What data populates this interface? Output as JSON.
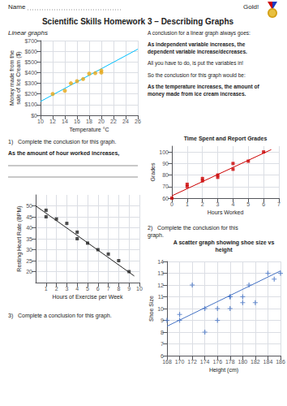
{
  "title": "Scientific Skills Homework 3 – Describing Graphs",
  "annotations": [
    "Name",
    "Gold!",
    "Linear graphs",
    "A conclusion for a linear graph always goes:",
    "As independent variable increases, the\ndependent variable increase/decreases.",
    "All you have to do, is put the variables in!",
    "So the conclusion for this graph would be:",
    "As the temperature increases, the amount of\nmoney made from ice cream increases.",
    "1)   Complete the conclusion for this graph.",
    "As the amount of hour worked increases,",
    "2)   Complete the conclusion for this graph.",
    "3)   Complete a conclusion for this graph."
  ],
  "chart_data": [
    {
      "type": "scatter",
      "xlabel": "Temperature °C",
      "ylabel": "Money made from the\nsale of Ice Cream ($)",
      "xlim": [
        10,
        26
      ],
      "ylim": [
        0,
        700
      ],
      "xticks": [
        10,
        12,
        14,
        16,
        18,
        20,
        22,
        24,
        26
      ],
      "yticks": [
        {
          "value": 0,
          "label": "$0"
        },
        {
          "value": 100,
          "label": "$100"
        },
        {
          "value": 200,
          "label": "$200"
        },
        {
          "value": 300,
          "label": "$300"
        },
        {
          "value": 400,
          "label": "$400"
        },
        {
          "value": 500,
          "label": "$500"
        },
        {
          "value": 600,
          "label": "$600"
        },
        {
          "value": 700,
          "label": "$700"
        }
      ],
      "grid": true,
      "series": [
        {
          "type": "scatter",
          "marker": "circle",
          "color": "#e6a817",
          "x": [
            12,
            14,
            15,
            16,
            17,
            18,
            19,
            20,
            20
          ],
          "values": [
            200,
            230,
            300,
            320,
            340,
            390,
            395,
            400,
            420
          ]
        },
        {
          "type": "line",
          "color": "#00bfff",
          "x": [
            10,
            26
          ],
          "values": [
            130,
            620
          ]
        }
      ]
    },
    {
      "type": "scatter",
      "title": "Time Spent and Report Grades",
      "xlabel": "Hours Worked",
      "ylabel": "Grades",
      "xlim": [
        0,
        7
      ],
      "ylim": [
        60,
        105
      ],
      "xticks": [
        0,
        1,
        2,
        3,
        4,
        5,
        6,
        7
      ],
      "yticks": [
        60,
        70,
        80,
        90,
        100
      ],
      "grid": true,
      "series": [
        {
          "type": "scatter",
          "marker": "square",
          "color": "#cc0000",
          "x": [
            0,
            1,
            1,
            2,
            2,
            3,
            3,
            4,
            4,
            5,
            6
          ],
          "values": [
            60,
            70,
            72,
            75,
            77,
            78,
            80,
            85,
            90,
            92,
            100
          ]
        },
        {
          "type": "line",
          "color": "#cc0000",
          "x": [
            0,
            6.5
          ],
          "values": [
            62,
            102
          ]
        }
      ]
    },
    {
      "type": "scatter",
      "xlabel": "Hours of Exercise per Week",
      "ylabel": "Resting Heart Rate (BPM)",
      "xlim": [
        0,
        10
      ],
      "ylim": [
        15,
        55
      ],
      "xticks": [
        1,
        2,
        3,
        4,
        5,
        6,
        7,
        8,
        9,
        10
      ],
      "yticks": [
        20,
        25,
        30,
        35,
        40,
        45,
        50
      ],
      "grid": true,
      "series": [
        {
          "type": "scatter",
          "marker": "square",
          "color": "#222222",
          "x": [
            1,
            1,
            2,
            3,
            4,
            4,
            5,
            6,
            7,
            8,
            9
          ],
          "values": [
            48,
            45,
            44,
            42,
            38,
            35,
            33,
            30,
            28,
            25,
            20
          ]
        },
        {
          "type": "line",
          "color": "#222222",
          "x": [
            0,
            9.5
          ],
          "values": [
            50,
            18
          ]
        }
      ]
    },
    {
      "type": "scatter",
      "title": "A scatter graph showing shoe size vs\nheight",
      "xlabel": "Height (cm)",
      "ylabel": "Shoe Size",
      "xlim": [
        168,
        186
      ],
      "ylim": [
        6,
        14
      ],
      "xticks": [
        168,
        170,
        172,
        174,
        176,
        178,
        180,
        182,
        184,
        186
      ],
      "yticks": [
        6,
        7,
        8,
        9,
        10,
        11,
        12,
        13,
        14
      ],
      "grid": true,
      "series": [
        {
          "type": "scatter",
          "marker": "plus",
          "color": "#4472c4",
          "x": [
            168,
            170,
            170,
            172,
            174,
            174,
            176,
            176,
            178,
            178,
            178,
            180,
            180,
            181,
            182,
            184,
            185,
            186
          ],
          "values": [
            9,
            9,
            9.5,
            12,
            10,
            8,
            10,
            9,
            11,
            11,
            10,
            11,
            10.5,
            12,
            10.5,
            13,
            12.5,
            13
          ]
        },
        {
          "type": "line",
          "color": "#4472c4",
          "x": [
            168,
            186
          ],
          "values": [
            8.5,
            13.2
          ]
        }
      ]
    }
  ]
}
